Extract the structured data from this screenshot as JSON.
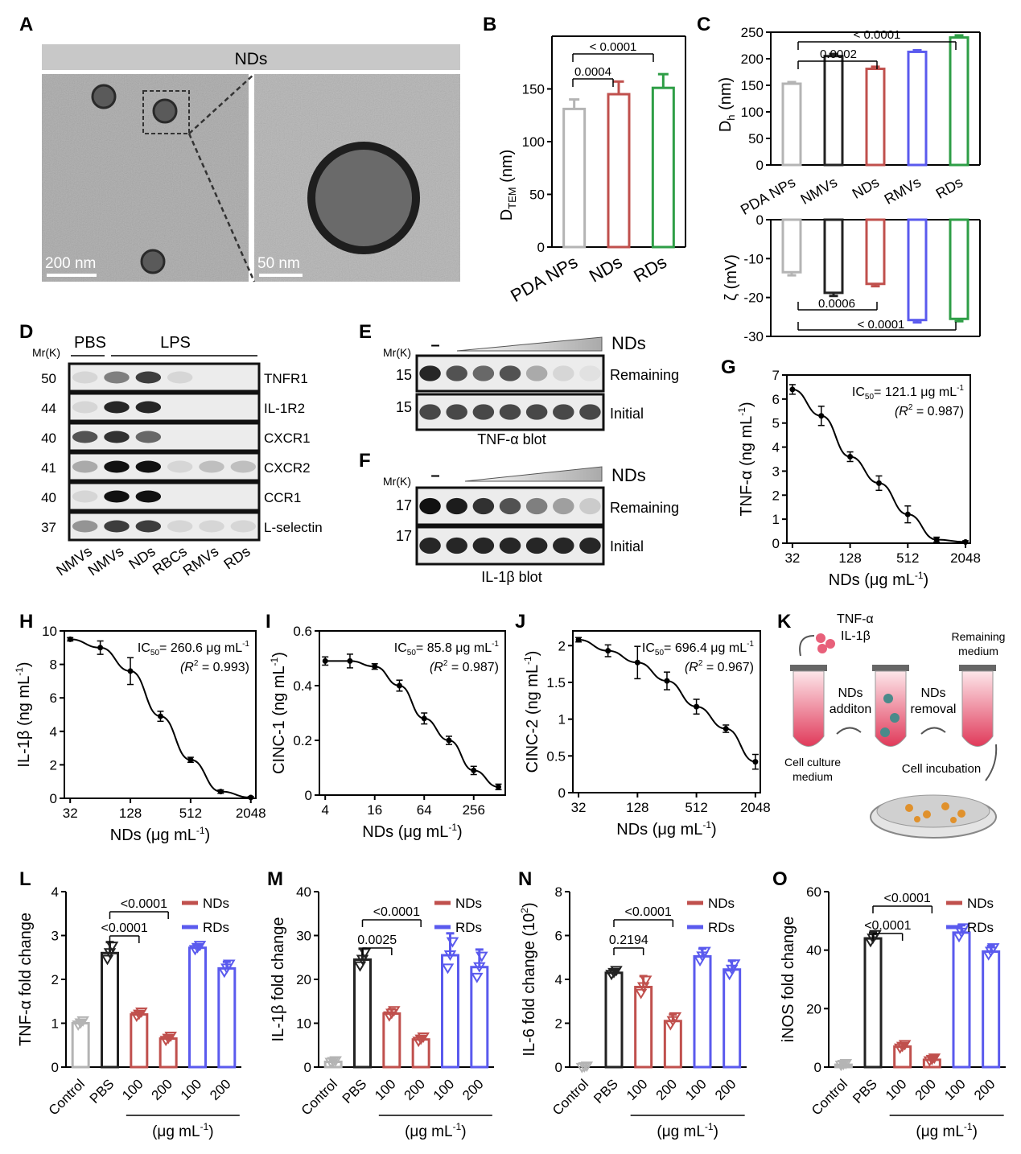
{
  "panels": {
    "A": {
      "letter": "A",
      "header": "NDs",
      "scale_left": "200 nm",
      "scale_right": "50 nm"
    },
    "B": {
      "letter": "B",
      "ylabel": "D",
      "ylabel_sub": "TEM",
      "ylabel_unit": " (nm)",
      "p1": "0.0004",
      "p2": "< 0.0001"
    },
    "C": {
      "letter": "C",
      "ylabel_top": "D",
      "ylabel_top_sub": "h",
      "ylabel_top_unit": " (nm)",
      "ylabel_bot": "ζ  (mV)",
      "p_top1": "0.0002",
      "p_top2": "< 0.0001",
      "p_bot1": "0.0006",
      "p_bot2": "< 0.0001"
    },
    "D": {
      "letter": "D",
      "mr": "Mr(K)",
      "group1": "PBS",
      "group2": "LPS",
      "rows": [
        {
          "mw": "50",
          "label": "TNFR1"
        },
        {
          "mw": "44",
          "label": "IL-1R2"
        },
        {
          "mw": "40",
          "label": "CXCR1"
        },
        {
          "mw": "41",
          "label": "CXCR2"
        },
        {
          "mw": "40",
          "label": "CCR1"
        },
        {
          "mw": "37",
          "label": "L-selectin"
        }
      ],
      "lanes": [
        "NMVs",
        "NMVs",
        "NDs",
        "RBCs",
        "RMVs",
        "RDs"
      ]
    },
    "E": {
      "letter": "E",
      "mr": "Mr(K)",
      "neg": "–",
      "nds": "NDs",
      "mw1": "15",
      "mw2": "15",
      "row1": "Remaining",
      "row2": "Initial",
      "caption": "TNF-α blot"
    },
    "F": {
      "letter": "F",
      "mr": "Mr(K)",
      "neg": "–",
      "nds": "NDs",
      "mw1": "17",
      "mw2": "17",
      "row1": "Remaining",
      "row2": "Initial",
      "caption": "IL-1β blot"
    },
    "G": {
      "letter": "G",
      "ylabel": "TNF-α (ng mL",
      "xlabel": "NDs (μg mL",
      "ic50": "IC",
      "ic50_val": "= 121.1 μg mL",
      "r2": "(R",
      "r2_val": " = 0.987)"
    },
    "H": {
      "letter": "H",
      "ylabel": "IL-1β (ng mL",
      "xlabel": "NDs (μg mL",
      "ic50": "IC",
      "ic50_val": "= 260.6 μg mL",
      "r2": "(R",
      "r2_val": " = 0.993)"
    },
    "I": {
      "letter": "I",
      "ylabel": "CINC-1 (ng mL",
      "xlabel": "NDs (μg mL",
      "ic50": "IC",
      "ic50_val": "= 85.8 μg mL",
      "r2": "(R",
      "r2_val": " = 0.987)"
    },
    "J": {
      "letter": "J",
      "ylabel": "CINC-2 (ng mL",
      "xlabel": "NDs (μg mL",
      "ic50": "IC",
      "ic50_val": "= 696.4 μg mL",
      "r2": "(R",
      "r2_val": " = 0.967)"
    },
    "K": {
      "letter": "K",
      "cyto1": "TNF-α",
      "cyto2": "IL-1β",
      "remaining1": "Remaining",
      "remaining2": "medium",
      "add1": "NDs",
      "add2": "additon",
      "rem1": "NDs",
      "rem2": "removal",
      "culture1": "Cell culture",
      "culture2": "medium",
      "incubation": "Cell incubation"
    },
    "L": {
      "letter": "L",
      "ylabel": "TNF-α fold change",
      "p1": "<0.0001",
      "p2": "<0.0001"
    },
    "M": {
      "letter": "M",
      "ylabel": "IL-1β fold change",
      "p1": "0.0025",
      "p2": "<0.0001"
    },
    "N": {
      "letter": "N",
      "ylabel": "IL-6 fold change (10",
      "p1": "0.2194",
      "p2": "<0.0001"
    },
    "O": {
      "letter": "O",
      "ylabel": "iNOS fold change",
      "p1": "<0.0001",
      "p2": "<0.0001"
    }
  },
  "common": {
    "sup_minus1": "-1",
    "sup2": "2",
    "sub50": "50",
    "unit_close": ")",
    "xgroup": "(μg mL",
    "xgroup_close": ")",
    "legend_nds": "NDs",
    "legend_rds": "RDs",
    "colors": {
      "gray": "#b4b4b4",
      "black": "#222222",
      "red": "#c0504d",
      "blue": "#5a5aee",
      "green": "#2e9e46"
    }
  },
  "chart_data": [
    {
      "panel": "B",
      "type": "bar",
      "categories": [
        "PDA NPs",
        "NDs",
        "RDs"
      ],
      "values": [
        131,
        145,
        151
      ],
      "errors": [
        9,
        12,
        13
      ],
      "ylim": [
        0,
        200
      ],
      "yticks": [
        0,
        50,
        100,
        150
      ]
    },
    {
      "panel": "C-top",
      "type": "bar",
      "categories": [
        "PDA NPs",
        "NMVs",
        "NDs",
        "RMVs",
        "RDs"
      ],
      "values": [
        153,
        205,
        181,
        213,
        240
      ],
      "errors": [
        3,
        4,
        4,
        3,
        4
      ],
      "ylim": [
        0,
        250
      ],
      "yticks": [
        0,
        50,
        100,
        150,
        200,
        250
      ]
    },
    {
      "panel": "C-bottom",
      "type": "bar",
      "categories": [
        "PDA NPs",
        "NMVs",
        "NDs",
        "RMVs",
        "RDs"
      ],
      "values": [
        -13.5,
        -18.8,
        -16.5,
        -25.8,
        -25.5
      ],
      "errors": [
        0.8,
        0.8,
        0.6,
        0.6,
        0.6
      ],
      "ylim": [
        -30,
        0
      ],
      "yticks": [
        0,
        -10,
        -20,
        -30
      ]
    },
    {
      "panel": "G",
      "type": "line",
      "x": [
        32,
        64,
        128,
        256,
        512,
        1024,
        2048
      ],
      "y": [
        6.4,
        5.3,
        3.6,
        2.5,
        1.2,
        0.15,
        0.05
      ],
      "errors": [
        0.2,
        0.4,
        0.2,
        0.3,
        0.35,
        0.1,
        0.05
      ],
      "ylim": [
        0,
        7
      ],
      "yticks": [
        0,
        1,
        2,
        3,
        4,
        5,
        6,
        7
      ],
      "xticks": [
        32,
        128,
        512,
        2048
      ]
    },
    {
      "panel": "H",
      "type": "line",
      "x": [
        32,
        64,
        128,
        256,
        512,
        1024,
        2048
      ],
      "y": [
        9.5,
        9.0,
        7.6,
        4.9,
        2.3,
        0.4,
        0.05
      ],
      "errors": [
        0.1,
        0.4,
        0.8,
        0.3,
        0.15,
        0.1,
        0.05
      ],
      "ylim": [
        0,
        10
      ],
      "yticks": [
        0,
        2,
        4,
        6,
        8,
        10
      ],
      "xticks": [
        32,
        128,
        512,
        2048
      ]
    },
    {
      "panel": "I",
      "type": "line",
      "x": [
        4,
        8,
        16,
        32,
        64,
        128,
        256,
        512
      ],
      "y": [
        0.49,
        0.49,
        0.47,
        0.4,
        0.28,
        0.2,
        0.09,
        0.03
      ],
      "errors": [
        0.015,
        0.025,
        0.01,
        0.02,
        0.02,
        0.015,
        0.015,
        0.01
      ],
      "ylim": [
        0,
        0.6
      ],
      "yticks": [
        0,
        0.2,
        0.4,
        0.6
      ],
      "xticks": [
        4,
        16,
        64,
        256
      ]
    },
    {
      "panel": "J",
      "type": "line",
      "x": [
        32,
        64,
        128,
        256,
        512,
        1024,
        2048
      ],
      "y": [
        2.08,
        1.93,
        1.77,
        1.52,
        1.17,
        0.87,
        0.42
      ],
      "errors": [
        0.03,
        0.08,
        0.22,
        0.12,
        0.1,
        0.05,
        0.1
      ],
      "ylim": [
        0,
        2.2
      ],
      "yticks": [
        0,
        0.5,
        1,
        1.5,
        2
      ],
      "xticks": [
        32,
        128,
        512,
        2048
      ]
    },
    {
      "panel": "L",
      "type": "bar",
      "categories": [
        "Control",
        "PBS",
        "100",
        "200",
        "100",
        "200"
      ],
      "series_groups": [
        "",
        "",
        "NDs",
        "NDs",
        "RDs",
        "RDs"
      ],
      "values": [
        1.0,
        2.6,
        1.2,
        0.65,
        2.72,
        2.25
      ],
      "errors": [
        0.08,
        0.25,
        0.08,
        0.08,
        0.08,
        0.15
      ],
      "ylim": [
        0,
        4
      ],
      "yticks": [
        0,
        1,
        2,
        3,
        4
      ]
    },
    {
      "panel": "M",
      "type": "bar",
      "categories": [
        "Control",
        "PBS",
        "100",
        "200",
        "100",
        "200"
      ],
      "series_groups": [
        "",
        "",
        "NDs",
        "NDs",
        "RDs",
        "RDs"
      ],
      "values": [
        1.2,
        24.5,
        12.2,
        6.3,
        25.5,
        22.8
      ],
      "errors": [
        0.3,
        2.5,
        1,
        0.8,
        5,
        4
      ],
      "ylim": [
        0,
        40
      ],
      "yticks": [
        0,
        10,
        20,
        30,
        40
      ]
    },
    {
      "panel": "N",
      "type": "bar",
      "categories": [
        "Control",
        "PBS",
        "100",
        "200",
        "100",
        "200"
      ],
      "series_groups": [
        "",
        "",
        "NDs",
        "NDs",
        "RDs",
        "RDs"
      ],
      "values": [
        0.0,
        4.3,
        3.65,
        2.1,
        5.05,
        4.45
      ],
      "errors": [
        0.05,
        0.15,
        0.5,
        0.3,
        0.35,
        0.4
      ],
      "ylim": [
        0,
        8
      ],
      "yticks": [
        0,
        2,
        4,
        6,
        8
      ]
    },
    {
      "panel": "O",
      "type": "bar",
      "categories": [
        "Control",
        "PBS",
        "100",
        "200",
        "100",
        "200"
      ],
      "series_groups": [
        "",
        "",
        "NDs",
        "NDs",
        "RDs",
        "RDs"
      ],
      "values": [
        0.8,
        44,
        7,
        2.5,
        46,
        39.5
      ],
      "errors": [
        0.5,
        2,
        1,
        0.8,
        2.5,
        2
      ],
      "ylim": [
        0,
        60
      ],
      "yticks": [
        0,
        20,
        40,
        60
      ]
    }
  ]
}
